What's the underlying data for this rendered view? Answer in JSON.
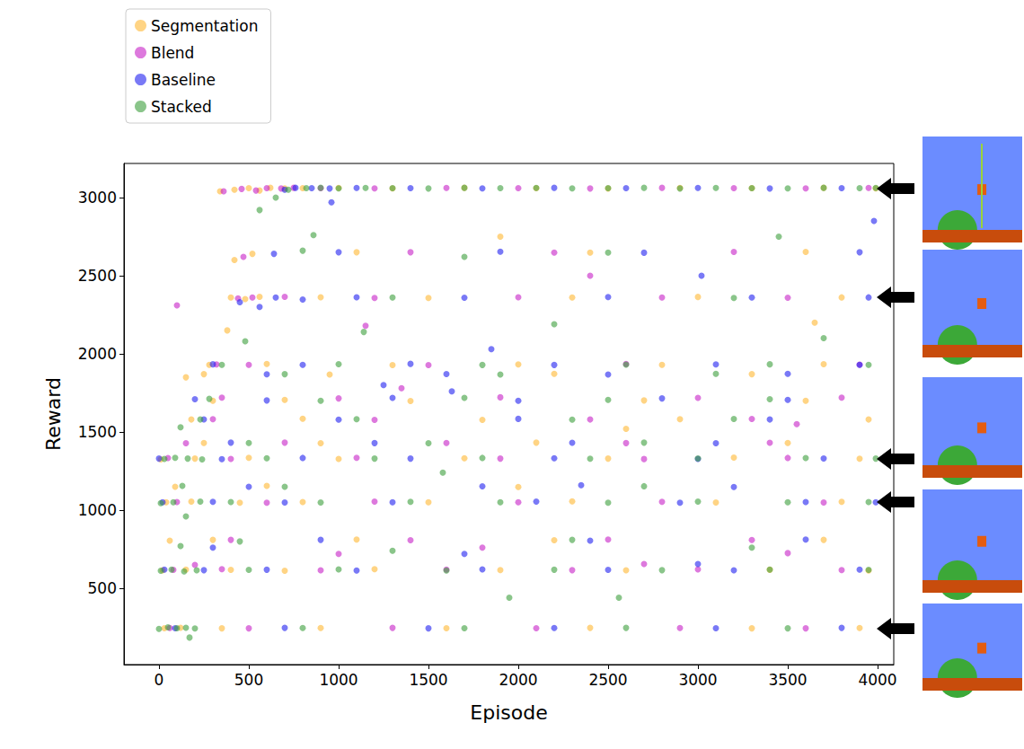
{
  "chart_data": {
    "type": "scatter",
    "x_label": "Episode",
    "y_label": "Reward",
    "xlim": [
      -195,
      4090
    ],
    "ylim": [
      12,
      3218
    ],
    "xticks": [
      0,
      500,
      1000,
      1500,
      2000,
      2500,
      3000,
      3500,
      4000
    ],
    "yticks": [
      500,
      1000,
      1500,
      2000,
      2500,
      3000
    ],
    "grid": false,
    "legend": "upper left",
    "marker": "circle",
    "series": [
      {
        "name": "Segmentation",
        "color": "#ffb732",
        "x": [
          30,
          120,
          350,
          900,
          1600,
          2400,
          3300,
          3900,
          20,
          150,
          400,
          700,
          1200,
          1900,
          2600,
          3400,
          3950,
          60,
          300,
          1100,
          2200,
          3700,
          40,
          180,
          450,
          800,
          1500,
          2300,
          3100,
          3800,
          90,
          600,
          2000,
          10,
          200,
          500,
          1000,
          1700,
          2500,
          3200,
          3900,
          250,
          900,
          2100,
          3500,
          180,
          800,
          1800,
          2900,
          3950,
          300,
          700,
          1400,
          2700,
          3600,
          250,
          950,
          2200,
          3300,
          280,
          600,
          1300,
          2000,
          2800,
          3700,
          400,
          480,
          560,
          900,
          1500,
          2300,
          3000,
          3800,
          420,
          520,
          1100,
          2400,
          3600,
          340,
          420,
          500,
          560,
          620,
          700,
          800,
          1000,
          1300,
          1700,
          2100,
          2500,
          2900,
          3300,
          3700,
          3990,
          150,
          380,
          1900,
          3650,
          2600
        ],
        "values": [
          245,
          248,
          244,
          246,
          245,
          247,
          244,
          246,
          615,
          620,
          618,
          612,
          622,
          617,
          615,
          619,
          614,
          805,
          810,
          812,
          808,
          810,
          1050,
          1055,
          1048,
          1052,
          1050,
          1056,
          1049,
          1053,
          1150,
          1155,
          1148,
          1325,
          1330,
          1335,
          1328,
          1332,
          1330,
          1336,
          1329,
          1430,
          1428,
          1432,
          1430,
          1580,
          1585,
          1578,
          1582,
          1580,
          1700,
          1705,
          1698,
          1702,
          1700,
          1870,
          1868,
          1872,
          1870,
          1930,
          1935,
          1928,
          1932,
          1930,
          1934,
          2360,
          2350,
          2365,
          2362,
          2358,
          2360,
          2364,
          2361,
          2600,
          2640,
          2650,
          2648,
          2652,
          3040,
          3050,
          3060,
          3045,
          3062,
          3058,
          3060,
          3061,
          3059,
          3062,
          3060,
          3058,
          3061,
          3060,
          3062,
          3059,
          1850,
          2150,
          2750,
          2200,
          1520
        ]
      },
      {
        "name": "Blend",
        "color": "#c71fc7",
        "x": [
          60,
          500,
          1300,
          2100,
          2900,
          3600,
          80,
          350,
          900,
          1600,
          2300,
          3000,
          3800,
          200,
          1000,
          1800,
          2700,
          3500,
          400,
          1400,
          2500,
          3300,
          100,
          600,
          1200,
          2000,
          2800,
          3700,
          50,
          400,
          1100,
          1900,
          2700,
          3500,
          150,
          700,
          1600,
          2600,
          3400,
          300,
          1200,
          2400,
          3300,
          350,
          1000,
          1900,
          3000,
          3800,
          320,
          500,
          1500,
          2600,
          3900,
          100,
          440,
          520,
          700,
          1200,
          2000,
          2800,
          3500,
          470,
          1400,
          2200,
          3200,
          360,
          460,
          540,
          600,
          680,
          750,
          900,
          1200,
          1600,
          2000,
          2400,
          2800,
          3200,
          3600,
          3950,
          1150,
          1350,
          2400,
          3550
        ],
        "values": [
          246,
          244,
          247,
          245,
          246,
          244,
          618,
          622,
          615,
          620,
          616,
          621,
          617,
          650,
          720,
          760,
          655,
          725,
          810,
          808,
          812,
          809,
          1052,
          1048,
          1055,
          1050,
          1053,
          1049,
          1333,
          1328,
          1335,
          1330,
          1327,
          1334,
          1428,
          1432,
          1430,
          1429,
          1431,
          1582,
          1578,
          1580,
          1583,
          1720,
          1715,
          1722,
          1718,
          1720,
          1932,
          1930,
          1928,
          1935,
          1931,
          2310,
          2355,
          2360,
          2365,
          2358,
          2362,
          2360,
          2359,
          2620,
          2650,
          2648,
          2652,
          3040,
          3055,
          3045,
          3060,
          3058,
          3062,
          3060,
          3059,
          3061,
          3060,
          3058,
          3062,
          3060,
          3059,
          3061,
          2180,
          1780,
          2500,
          1550
        ]
      },
      {
        "name": "Baseline",
        "color": "#1f1ff0",
        "x": [
          90,
          700,
          1500,
          2200,
          3100,
          3800,
          30,
          250,
          600,
          1100,
          1800,
          2500,
          3200,
          3900,
          300,
          900,
          1700,
          2400,
          3000,
          3600,
          20,
          300,
          700,
          1300,
          2100,
          2900,
          3600,
          3990,
          500,
          1800,
          3200,
          0,
          350,
          800,
          1400,
          2200,
          3000,
          3700,
          400,
          1200,
          2300,
          3100,
          250,
          1000,
          2000,
          3400,
          200,
          600,
          1300,
          2000,
          2800,
          3500,
          600,
          1600,
          2500,
          3500,
          300,
          800,
          1400,
          2200,
          3100,
          3900,
          450,
          560,
          650,
          800,
          1100,
          1700,
          2500,
          3300,
          3950,
          640,
          1000,
          1900,
          2700,
          3900,
          700,
          760,
          850,
          950,
          1100,
          1400,
          1800,
          2200,
          2600,
          3000,
          3400,
          3800,
          3980,
          1850,
          3020,
          1250,
          2350,
          960,
          1630
        ],
        "values": [
          245,
          247,
          244,
          246,
          245,
          247,
          620,
          616,
          619,
          614,
          621,
          618,
          615,
          620,
          760,
          810,
          720,
          805,
          655,
          812,
          1050,
          1053,
          1049,
          1051,
          1055,
          1048,
          1052,
          1050,
          1150,
          1152,
          1148,
          1330,
          1326,
          1334,
          1330,
          1332,
          1328,
          1331,
          1432,
          1429,
          1431,
          1428,
          1581,
          1579,
          1584,
          1580,
          1710,
          1702,
          1718,
          1700,
          1715,
          1706,
          1869,
          1871,
          1868,
          1872,
          1933,
          1930,
          1936,
          1929,
          1932,
          1930,
          2330,
          2300,
          2360,
          2348,
          2362,
          2359,
          2363,
          2360,
          2361,
          2640,
          2650,
          2653,
          2647,
          2650,
          3050,
          3062,
          3060,
          3058,
          3061,
          3060,
          3059,
          3062,
          3060,
          3061,
          3058,
          3060,
          2850,
          2030,
          2500,
          1800,
          1160,
          2970,
          1760
        ]
      },
      {
        "name": "Stacked",
        "color": "#3c9e3c",
        "x": [
          0,
          50,
          100,
          150,
          200,
          170,
          800,
          1700,
          2600,
          3500,
          10,
          70,
          140,
          210,
          500,
          1000,
          1600,
          2200,
          2800,
          3400,
          3950,
          120,
          450,
          1300,
          2300,
          3300,
          10,
          80,
          150,
          230,
          400,
          900,
          1400,
          1900,
          2500,
          3000,
          3500,
          3950,
          130,
          700,
          2700,
          30,
          90,
          160,
          240,
          600,
          1200,
          1800,
          2400,
          3000,
          3600,
          3990,
          500,
          1500,
          2700,
          120,
          230,
          1100,
          2300,
          3200,
          280,
          900,
          1700,
          2500,
          3400,
          700,
          1900,
          3100,
          350,
          1000,
          1800,
          2600,
          3400,
          3950,
          480,
          1300,
          2200,
          3200,
          3700,
          800,
          1700,
          2500,
          3450,
          560,
          650,
          720,
          820,
          900,
          1000,
          1150,
          1300,
          1500,
          1700,
          1900,
          2100,
          2300,
          2500,
          2700,
          2900,
          3100,
          3300,
          3500,
          3700,
          3900,
          3990,
          1950,
          2560,
          1580,
          860,
          1140
        ],
        "values": [
          240,
          250,
          245,
          248,
          243,
          185,
          246,
          245,
          247,
          244,
          612,
          620,
          608,
          615,
          618,
          621,
          614,
          619,
          616,
          620,
          618,
          770,
          800,
          740,
          810,
          760,
          1045,
          1050,
          960,
          1055,
          1052,
          1049,
          1053,
          1050,
          1048,
          1055,
          1051,
          1052,
          1155,
          1150,
          1153,
          1328,
          1335,
          1330,
          1325,
          1332,
          1330,
          1334,
          1329,
          1331,
          1333,
          1330,
          1430,
          1428,
          1432,
          1530,
          1580,
          1582,
          1579,
          1583,
          1712,
          1700,
          1718,
          1705,
          1710,
          1870,
          1868,
          1872,
          1930,
          1934,
          1929,
          1931,
          1933,
          1930,
          2080,
          2360,
          2190,
          2358,
          2100,
          2660,
          2620,
          2648,
          2750,
          2920,
          3000,
          3050,
          3060,
          3062,
          3059,
          3061,
          3060,
          3058,
          3062,
          3060,
          3061,
          3059,
          3060,
          3062,
          3058,
          3061,
          3060,
          3059,
          3062,
          3060,
          3061,
          440,
          440,
          1240,
          2760,
          2140
        ]
      }
    ]
  }
}
